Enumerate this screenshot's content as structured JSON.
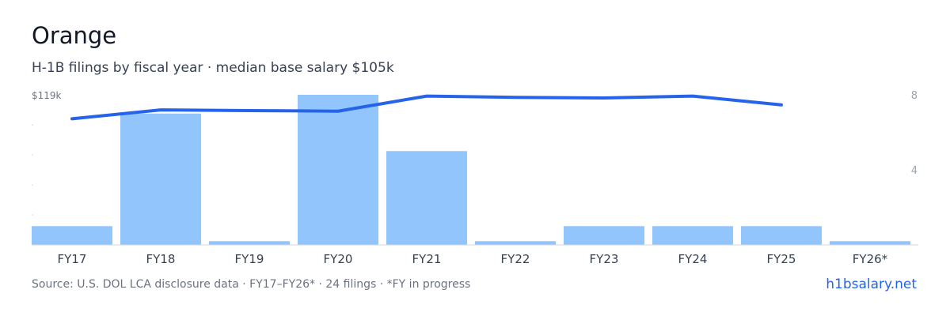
{
  "header": {
    "title": "Orange",
    "subtitle": "H-1B filings by fiscal year · median base salary $105k"
  },
  "footer": {
    "source": "Source: U.S. DOL LCA disclosure data · FY17–FY26* · 24 filings · *FY in progress",
    "brand": "h1bsalary.net"
  },
  "colors": {
    "bar": "#93c5fd",
    "line": "#2563eb",
    "axis": "#d1d5db"
  },
  "chart_data": {
    "type": "bar",
    "categories": [
      "FY17",
      "FY18",
      "FY19",
      "FY20",
      "FY21",
      "FY22",
      "FY23",
      "FY24",
      "FY25",
      "FY26*"
    ],
    "series": [
      {
        "type": "bar",
        "axis": "right",
        "values": [
          1,
          7,
          0.2,
          8,
          5,
          0.2,
          1,
          1,
          1,
          0.2
        ]
      },
      {
        "type": "line",
        "axis": "left",
        "values": [
          100,
          107,
          106.5,
          106,
          118,
          117,
          116.5,
          118,
          111,
          null
        ]
      }
    ],
    "y_left": {
      "top_label": "$119k",
      "max": 119,
      "min": 0
    },
    "y_right": {
      "ticks": [
        4,
        8
      ],
      "max": 8,
      "min": 0
    },
    "grid": false
  }
}
